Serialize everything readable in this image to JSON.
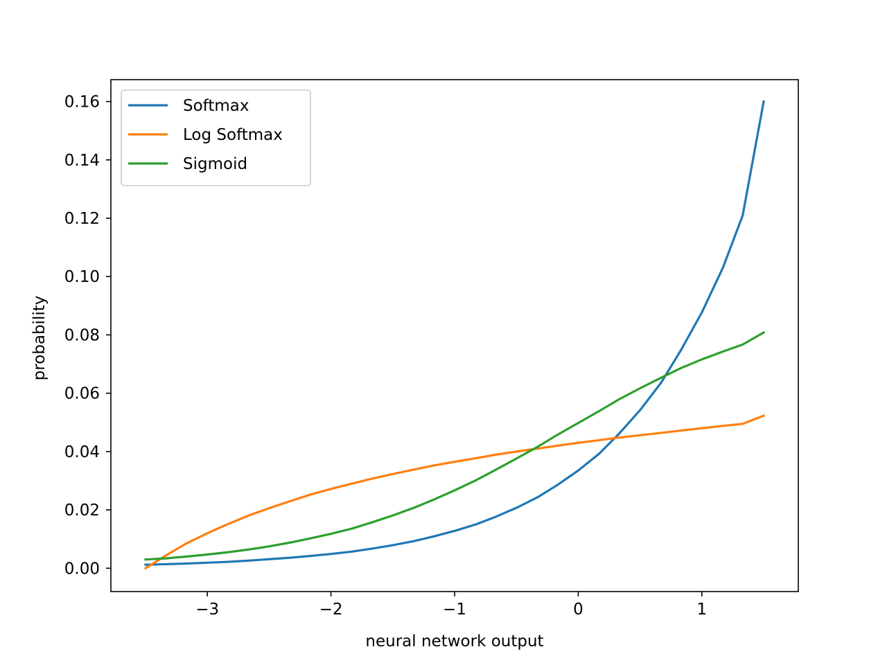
{
  "chart_data": {
    "type": "line",
    "title": "",
    "xlabel": "neural network output",
    "ylabel": "probability",
    "xlim": [
      -3.78,
      1.78
    ],
    "ylim": [
      -0.008,
      0.1675
    ],
    "xticks": [
      -3,
      -2,
      -1,
      0,
      1
    ],
    "xtick_labels": [
      "−3",
      "−2",
      "−1",
      "0",
      "1"
    ],
    "yticks": [
      0.0,
      0.02,
      0.04,
      0.06,
      0.08,
      0.1,
      0.12,
      0.14,
      0.16
    ],
    "ytick_labels": [
      "0.00",
      "0.02",
      "0.04",
      "0.06",
      "0.08",
      "0.10",
      "0.12",
      "0.14",
      "0.16"
    ],
    "grid": false,
    "legend_position": "top-left",
    "x": [
      -3.5,
      -3.33,
      -3.17,
      -3.0,
      -2.83,
      -2.67,
      -2.5,
      -2.33,
      -2.17,
      -2.0,
      -1.83,
      -1.67,
      -1.5,
      -1.33,
      -1.17,
      -1.0,
      -0.83,
      -0.67,
      -0.5,
      -0.33,
      -0.17,
      0.0,
      0.17,
      0.33,
      0.5,
      0.67,
      0.83,
      1.0,
      1.17,
      1.33,
      1.5
    ],
    "series": [
      {
        "name": "Softmax",
        "color": "#1f77b4",
        "values": [
          0.0012,
          0.0014,
          0.0016,
          0.0019,
          0.0022,
          0.0026,
          0.0031,
          0.0036,
          0.0042,
          0.0049,
          0.0057,
          0.0067,
          0.0079,
          0.0093,
          0.0109,
          0.0128,
          0.015,
          0.0176,
          0.0207,
          0.0243,
          0.0285,
          0.0335,
          0.0393,
          0.0461,
          0.0542,
          0.0636,
          0.0747,
          0.0877,
          0.103,
          0.1209,
          0.16
        ]
      },
      {
        "name": "Log Softmax",
        "color": "#ff7f0e",
        "values": [
          0.0,
          0.0045,
          0.0085,
          0.012,
          0.0152,
          0.018,
          0.0206,
          0.023,
          0.0252,
          0.0272,
          0.029,
          0.0307,
          0.0323,
          0.0338,
          0.0352,
          0.0365,
          0.0377,
          0.0389,
          0.04,
          0.041,
          0.042,
          0.043,
          0.0439,
          0.0448,
          0.0456,
          0.0464,
          0.0472,
          0.048,
          0.0488,
          0.0495,
          0.0523
        ]
      },
      {
        "name": "Sigmoid",
        "color": "#2ca02c",
        "values": [
          0.003,
          0.0034,
          0.004,
          0.0047,
          0.0055,
          0.0064,
          0.0075,
          0.0088,
          0.0102,
          0.0118,
          0.0136,
          0.0157,
          0.0181,
          0.0207,
          0.0235,
          0.0267,
          0.0301,
          0.0337,
          0.0376,
          0.0416,
          0.0457,
          0.0498,
          0.0539,
          0.0579,
          0.0617,
          0.0653,
          0.0686,
          0.0716,
          0.0743,
          0.0767,
          0.0808
        ]
      }
    ]
  }
}
